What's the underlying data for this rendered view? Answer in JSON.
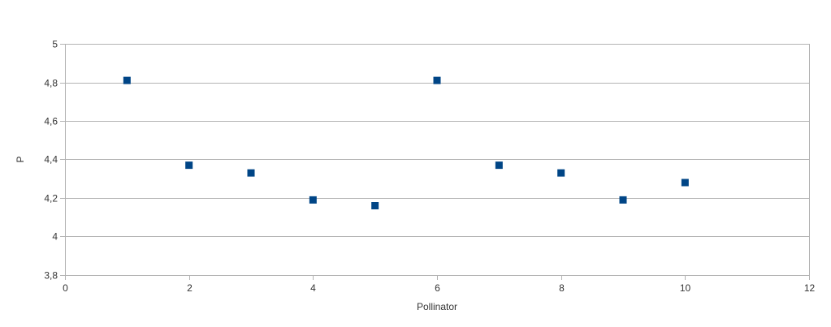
{
  "chart_data": {
    "type": "scatter",
    "title": "",
    "xlabel": "Pollinator",
    "ylabel": "P",
    "xlim": [
      0,
      12
    ],
    "ylim": [
      3.8,
      5
    ],
    "xticks": [
      0,
      2,
      4,
      6,
      8,
      10,
      12
    ],
    "xtick_labels": [
      "0",
      "2",
      "4",
      "6",
      "8",
      "10",
      "12"
    ],
    "yticks": [
      3.8,
      4,
      4.2,
      4.4,
      4.6,
      4.8,
      5
    ],
    "ytick_labels": [
      "3,8",
      "4",
      "4,2",
      "4,4",
      "4,6",
      "4,8",
      "5"
    ],
    "grid": true,
    "legend": "none",
    "marker": "square",
    "marker_color": "#004586",
    "series": [
      {
        "x": [
          1,
          2,
          3,
          4,
          5,
          6,
          7,
          8,
          9,
          10
        ],
        "y": [
          4.81,
          4.37,
          4.33,
          4.19,
          4.16,
          4.81,
          4.37,
          4.33,
          4.19,
          4.28
        ]
      }
    ]
  }
}
